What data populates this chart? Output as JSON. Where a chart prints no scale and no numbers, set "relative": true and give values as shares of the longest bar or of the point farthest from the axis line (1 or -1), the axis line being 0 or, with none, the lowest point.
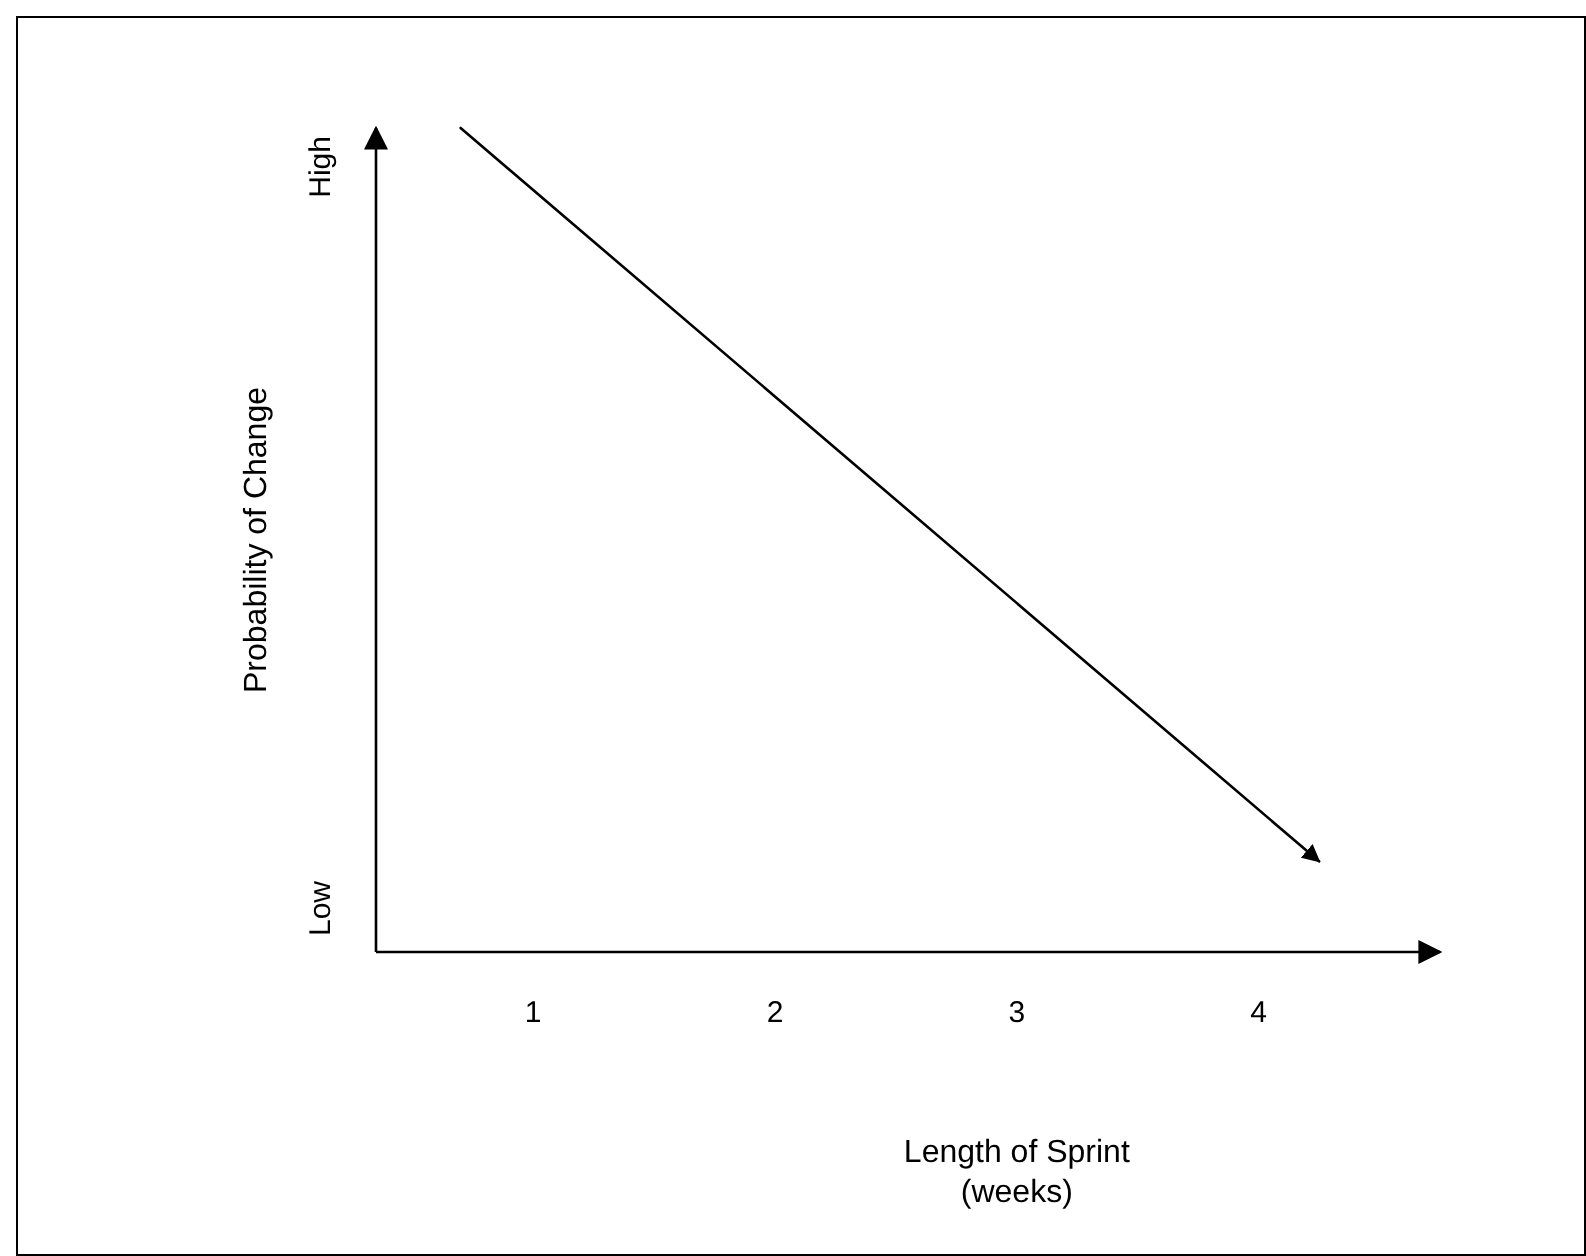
{
  "chart_data": {
    "type": "line",
    "relative": true,
    "xlabel": "Length of Sprint\n(weeks)",
    "ylabel": "Probability of Change",
    "xlim": [
      0.35,
      4.75
    ],
    "xticks": [
      1,
      2,
      3,
      4
    ],
    "annotations": [
      "Low",
      "High"
    ],
    "series": [
      {
        "color": "#000000",
        "x": [
          0.7,
          4.25
        ],
        "values": [
          1,
          0.11
        ]
      }
    ],
    "marker": "none",
    "line_style": "solid",
    "grid": false
  }
}
